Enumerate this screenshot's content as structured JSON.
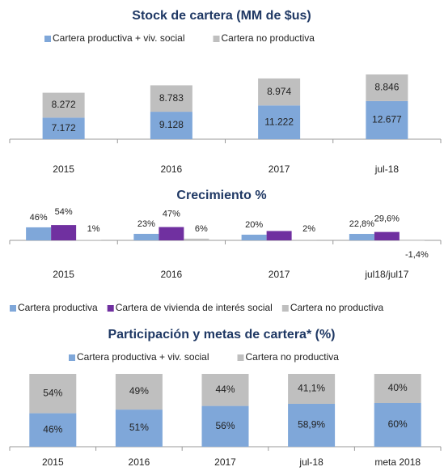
{
  "chart_data": [
    {
      "type": "stacked-bar",
      "title": "Stock de cartera (MM de $us)",
      "categories": [
        "2015",
        "2016",
        "2017",
        "jul-18"
      ],
      "series": [
        {
          "name": "Cartera productiva + viv. social",
          "color": "#7fa7d9",
          "values": [
            7172,
            9128,
            11222,
            12677
          ],
          "value_labels": [
            "7.172",
            "9.128",
            "11.222",
            "12.677"
          ]
        },
        {
          "name": "Cartera no productiva",
          "color": "#bfbfbf",
          "values": [
            8272,
            8783,
            8974,
            8846
          ],
          "value_labels": [
            "8.272",
            "8.783",
            "8.974",
            "8.846"
          ]
        }
      ]
    },
    {
      "type": "grouped-bar",
      "title": "Crecimiento %",
      "categories": [
        "2015",
        "2016",
        "2017",
        "jul18/jul17"
      ],
      "series": [
        {
          "name": "Cartera productiva",
          "color": "#7fa7d9",
          "values": [
            46,
            23,
            20,
            22.8
          ],
          "value_labels": [
            "46%",
            "23%",
            "20%",
            "22,8%"
          ]
        },
        {
          "name": "Cartera de vivienda de interés social",
          "color": "#7030a0",
          "values": [
            54,
            47,
            33,
            29.6
          ],
          "value_labels": [
            "54%",
            "47%",
            null,
            "29,6%"
          ]
        },
        {
          "name": "Cartera no productiva",
          "color": "#bfbfbf",
          "values": [
            1,
            6,
            2,
            -1.4
          ],
          "value_labels": [
            "1%",
            "6%",
            "2%",
            "-1,4%"
          ]
        }
      ]
    },
    {
      "type": "stacked-bar",
      "title": "Participación y metas de cartera* (%)",
      "categories": [
        "2015",
        "2016",
        "2017",
        "jul-18",
        "meta 2018"
      ],
      "series": [
        {
          "name": "Cartera productiva + viv. social",
          "color": "#7fa7d9",
          "values": [
            46,
            51,
            56,
            58.9,
            60
          ],
          "value_labels": [
            "46%",
            "51%",
            "56%",
            "58,9%",
            "60%"
          ]
        },
        {
          "name": "Cartera no productiva",
          "color": "#bfbfbf",
          "values": [
            54,
            49,
            44,
            41.1,
            40
          ],
          "value_labels": [
            "54%",
            "49%",
            "44%",
            "41,1%",
            "40%"
          ]
        }
      ]
    }
  ]
}
